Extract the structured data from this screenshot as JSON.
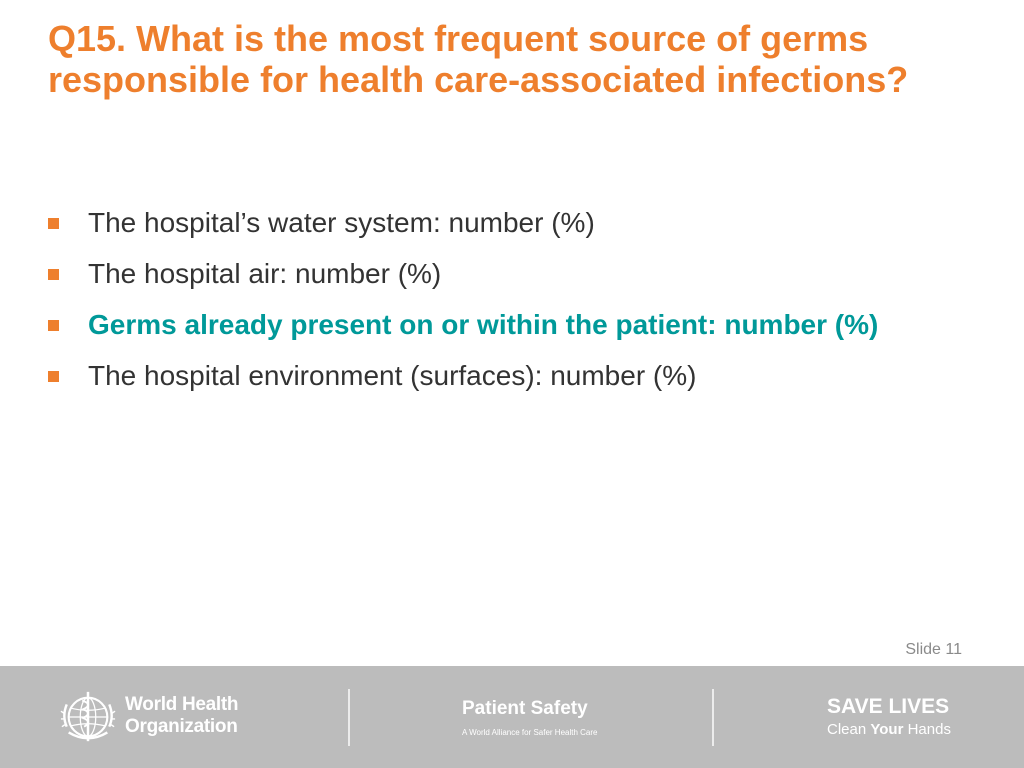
{
  "slide": {
    "title": "Q15. What is the most frequent source of germs responsible for health care-associated infections?",
    "bullets": [
      {
        "text": "The hospital’s water system: number (%)",
        "highlight": false
      },
      {
        "text": "The hospital air: number (%)",
        "highlight": false
      },
      {
        "text": "Germs already present on or within the patient: number (%)",
        "highlight": true
      },
      {
        "text": "The hospital environment (surfaces): number (%)",
        "highlight": false
      }
    ],
    "slide_number": "Slide 11"
  },
  "footer": {
    "who_name_line1": "World Health",
    "who_name_line2": "Organization",
    "who_logo_icon": "who-emblem-icon",
    "patient_safety_title": "Patient Safety",
    "patient_safety_subtitle": "A World Alliance for Safer Health Care",
    "save_lives_title": "SAVE LIVES",
    "clean_part1": "Clean ",
    "clean_part2": "Your",
    "clean_part3": " Hands"
  },
  "colors": {
    "title": "#EE7F2D",
    "bullet_marker": "#EE7F2D",
    "highlight_text": "#009999",
    "body_text": "#333333",
    "footer_background": "#BCBCBC"
  }
}
